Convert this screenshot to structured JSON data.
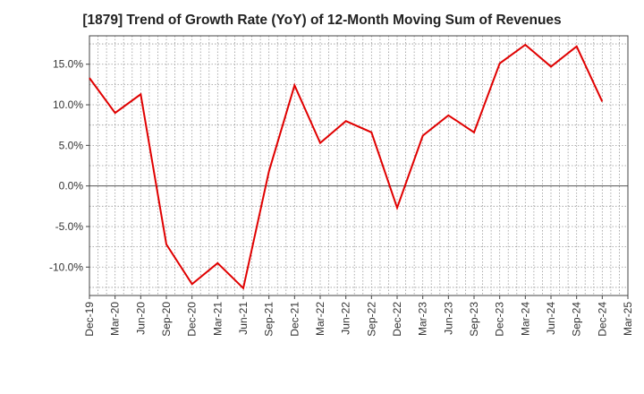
{
  "chart_data": {
    "type": "line",
    "title": "[1879]  Trend of Growth Rate (YoY) of 12-Month Moving Sum of Revenues",
    "xlabel": "",
    "ylabel": "",
    "x": [
      "Dec-19",
      "Mar-20",
      "Jun-20",
      "Sep-20",
      "Dec-20",
      "Mar-21",
      "Jun-21",
      "Sep-21",
      "Dec-21",
      "Mar-22",
      "Jun-22",
      "Sep-22",
      "Dec-22",
      "Mar-23",
      "Jun-23",
      "Sep-23",
      "Dec-23",
      "Mar-24",
      "Jun-24",
      "Sep-24",
      "Dec-24"
    ],
    "x_ticks": [
      "Dec-19",
      "Mar-20",
      "Jun-20",
      "Sep-20",
      "Dec-20",
      "Mar-21",
      "Jun-21",
      "Sep-21",
      "Dec-21",
      "Mar-22",
      "Jun-22",
      "Sep-22",
      "Dec-22",
      "Mar-23",
      "Jun-23",
      "Sep-23",
      "Dec-23",
      "Mar-24",
      "Jun-24",
      "Sep-24",
      "Dec-24",
      "Mar-25"
    ],
    "series": [
      {
        "values": [
          13.3,
          9.0,
          11.3,
          -7.2,
          -12.1,
          -9.5,
          -12.6,
          1.8,
          12.4,
          5.3,
          8.0,
          6.6,
          -2.7,
          6.2,
          8.7,
          6.6,
          15.1,
          17.4,
          14.7,
          17.2,
          10.4
        ],
        "color": "#e00000"
      }
    ],
    "ylim": [
      -13.5,
      18.5
    ],
    "y_ticks": [
      -10,
      -5,
      0,
      5,
      10,
      15
    ],
    "y_tick_labels": [
      "-10.0%",
      "-5.0%",
      "0.0%",
      "5.0%",
      "10.0%",
      "15.0%"
    ],
    "grid": true
  }
}
